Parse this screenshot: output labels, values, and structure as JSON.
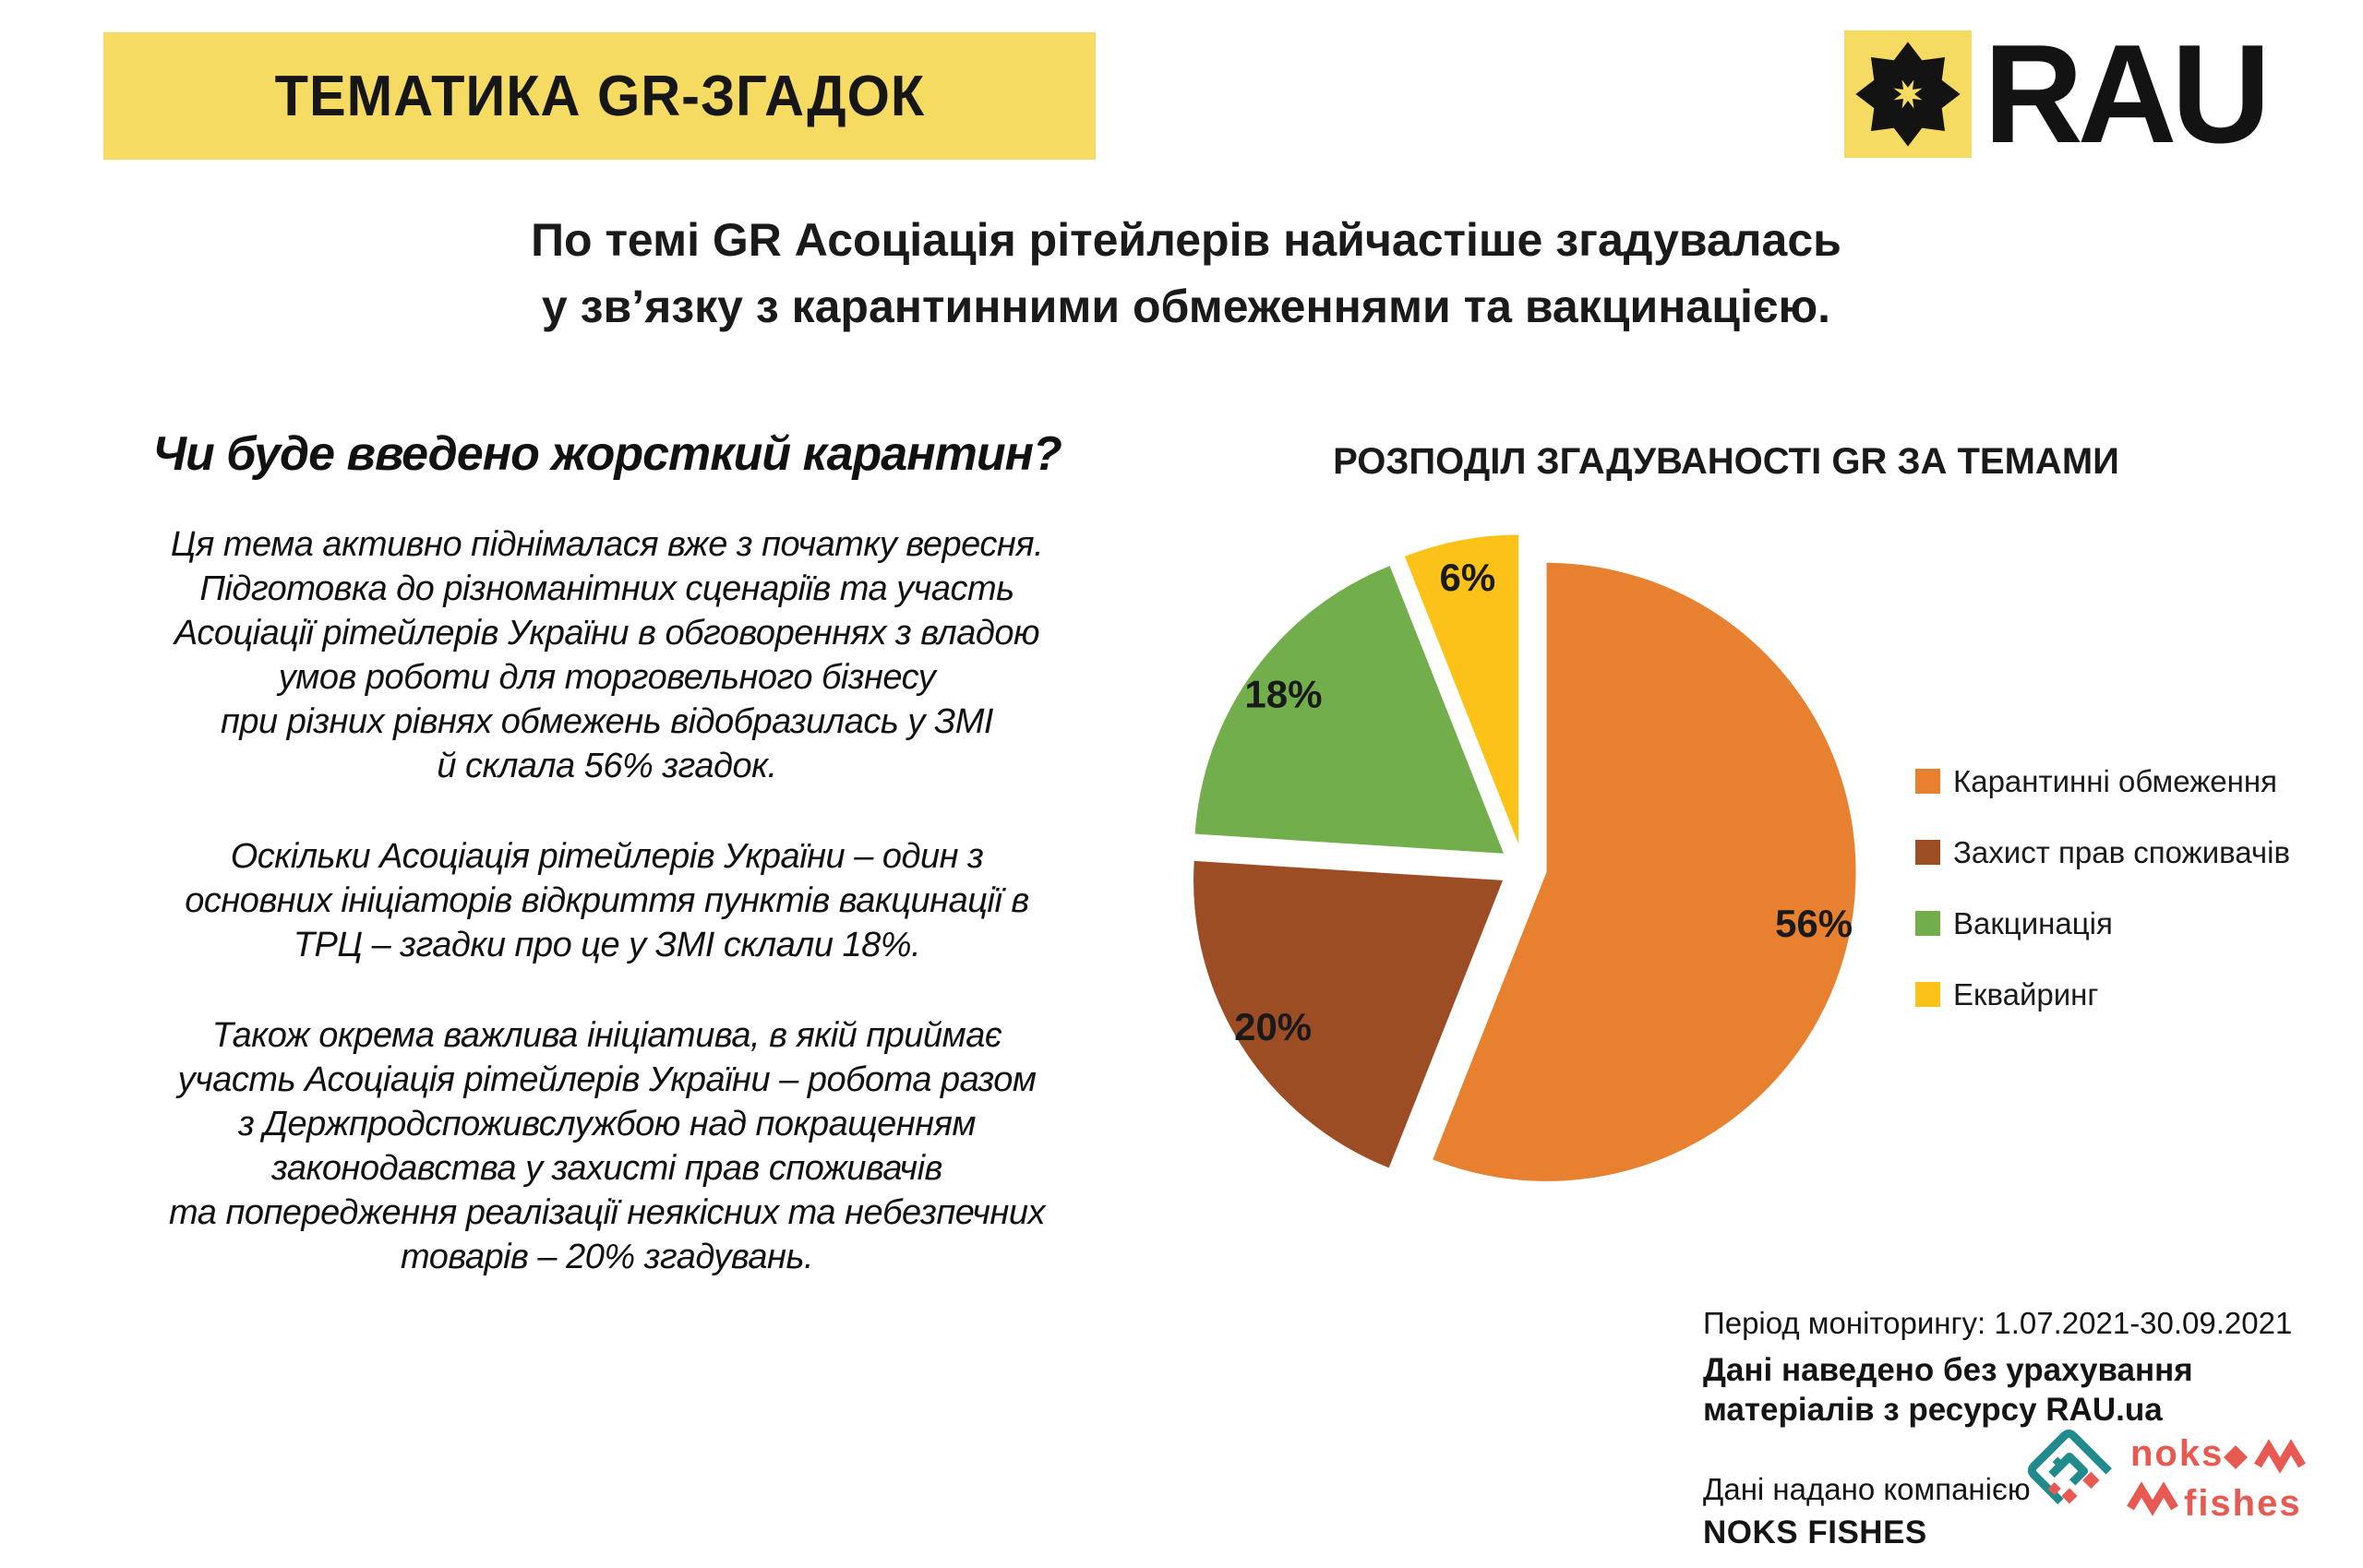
{
  "header": {
    "title": "ТЕМАТИКА GR-ЗГАДОК",
    "logo_text": "RAU",
    "subtitle": "По темі GR Асоціація рітейлерів найчастіше згадувалась\nу зв’язку з карантинними обмеженнями та вакцинацією."
  },
  "left_column": {
    "heading": "Чи буде введено жорсткий карантин?",
    "paragraphs": [
      "Ця тема активно піднімалася вже з початку вересня.\nПідготовка до різноманітних сценаріїв та участь\nАсоціації рітейлерів України в обговореннях з владою\nумов роботи для торговельного бізнесу\nпри різних рівнях обмежень відобразилась у ЗМІ\nй склала 56% згадок.",
      "Оскільки Асоціація рітейлерів України – один з\nосновних ініціаторів відкриття пунктів вакцинації в\nТРЦ – згадки про це у ЗМІ склали 18%.",
      "Також окрема важлива ініціатива, в якій приймає\nучасть Асоціація рітейлерів України – робота разом\nз Держпродспоживслужбою над покращенням\nзаконодавства у захисті прав споживачів\nта попередження реалізації неякісних та небезпечних\nтоварів – 20% згадувань."
    ]
  },
  "chart_data": {
    "type": "pie",
    "title": "РОЗПОДІЛ ЗГАДУВАНОСТІ GR ЗА ТЕМАМИ",
    "labels": [
      "Карантинні обмеження",
      "Захист прав споживачів",
      "Вакцинація",
      "Еквайринг"
    ],
    "values": [
      56,
      20,
      18,
      6
    ],
    "data_labels": [
      "56%",
      "20%",
      "18%",
      "6%"
    ],
    "unit": "%",
    "colors": [
      "#E8812F",
      "#9D4D24",
      "#72AE4C",
      "#FCC217"
    ],
    "exploded": true,
    "start_angle_deg": -90,
    "direction": "clockwise",
    "legend_position": "right"
  },
  "footer": {
    "monitoring_period": "Період моніторингу: 1.07.2021-30.09.2021",
    "disclaimer": "Дані наведено без урахування\nматеріалів з ресурсу RAU.ua",
    "provided_by": "Дані надано компанією",
    "provider_name": "NOKS FISHES",
    "provider_logo_word1": "noks",
    "provider_logo_word2": "fishes"
  },
  "theme": {
    "banner_yellow": "#F6DB62",
    "noks_teal": "#218A8C",
    "noks_red": "#E75951"
  }
}
